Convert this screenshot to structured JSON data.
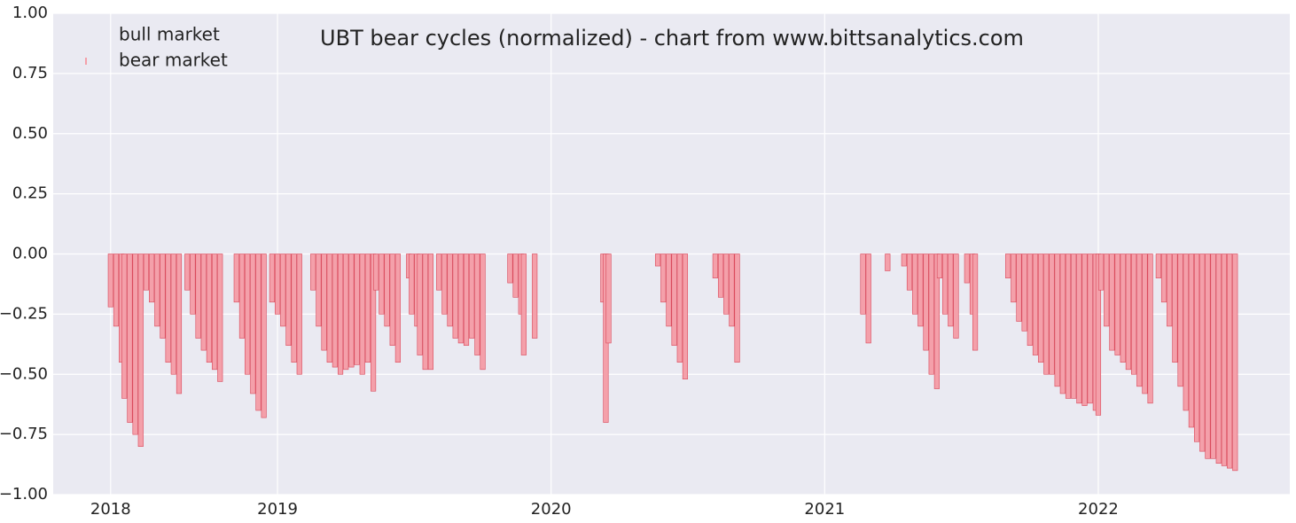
{
  "chart_data": {
    "type": "bar",
    "title": "UBT bear cycles (normalized)  - chart from www.bittsanalytics.com",
    "series": [
      {
        "name": "bull market",
        "x": [],
        "values": []
      },
      {
        "name": "bear market",
        "color": "#f4a0aa",
        "x": [
          2018.39,
          2018.41,
          2018.43,
          2018.44,
          2018.46,
          2018.48,
          2018.5,
          2018.52,
          2018.54,
          2018.56,
          2018.58,
          2018.6,
          2018.62,
          2018.64,
          2018.67,
          2018.69,
          2018.71,
          2018.73,
          2018.75,
          2018.77,
          2018.79,
          2018.85,
          2018.87,
          2018.89,
          2018.91,
          2018.93,
          2018.95,
          2018.98,
          2019.0,
          2019.02,
          2019.04,
          2019.06,
          2019.08,
          2019.13,
          2019.15,
          2019.17,
          2019.19,
          2019.21,
          2019.23,
          2019.25,
          2019.27,
          2019.29,
          2019.31,
          2019.33,
          2019.35,
          2019.36,
          2019.38,
          2019.4,
          2019.42,
          2019.44,
          2019.48,
          2019.49,
          2019.51,
          2019.52,
          2019.54,
          2019.56,
          2019.59,
          2019.61,
          2019.63,
          2019.65,
          2019.67,
          2019.69,
          2019.71,
          2019.73,
          2019.75,
          2019.85,
          2019.87,
          2019.89,
          2019.9,
          2019.94,
          2020.19,
          2020.2,
          2020.21,
          2020.39,
          2020.41,
          2020.43,
          2020.45,
          2020.47,
          2020.49,
          2020.6,
          2020.62,
          2020.64,
          2020.66,
          2020.68,
          2021.14,
          2021.16,
          2021.23,
          2021.29,
          2021.31,
          2021.33,
          2021.35,
          2021.37,
          2021.39,
          2021.41,
          2021.42,
          2021.44,
          2021.46,
          2021.48,
          2021.52,
          2021.54,
          2021.55,
          2021.67,
          2021.69,
          2021.71,
          2021.73,
          2021.75,
          2021.77,
          2021.79,
          2021.81,
          2021.83,
          2021.85,
          2021.87,
          2021.89,
          2021.91,
          2021.93,
          2021.95,
          2021.97,
          2021.99,
          2022.0,
          2022.01,
          2022.03,
          2022.05,
          2022.07,
          2022.09,
          2022.11,
          2022.13,
          2022.15,
          2022.17,
          2022.19,
          2022.22,
          2022.24,
          2022.26,
          2022.28,
          2022.3,
          2022.32,
          2022.34,
          2022.36,
          2022.38,
          2022.4,
          2022.42,
          2022.44,
          2022.46,
          2022.48,
          2022.5
        ],
        "values": [
          -0.22,
          -0.3,
          -0.45,
          -0.6,
          -0.7,
          -0.75,
          -0.8,
          -0.15,
          -0.2,
          -0.3,
          -0.35,
          -0.45,
          -0.5,
          -0.58,
          -0.15,
          -0.25,
          -0.35,
          -0.4,
          -0.45,
          -0.48,
          -0.53,
          -0.2,
          -0.35,
          -0.5,
          -0.58,
          -0.65,
          -0.68,
          -0.2,
          -0.25,
          -0.3,
          -0.38,
          -0.45,
          -0.5,
          -0.15,
          -0.3,
          -0.4,
          -0.45,
          -0.47,
          -0.5,
          -0.48,
          -0.47,
          -0.46,
          -0.5,
          -0.45,
          -0.57,
          -0.15,
          -0.25,
          -0.3,
          -0.38,
          -0.45,
          -0.1,
          -0.25,
          -0.3,
          -0.42,
          -0.48,
          -0.48,
          -0.15,
          -0.25,
          -0.3,
          -0.35,
          -0.37,
          -0.38,
          -0.35,
          -0.42,
          -0.48,
          -0.12,
          -0.18,
          -0.25,
          -0.42,
          -0.35,
          -0.2,
          -0.7,
          -0.37,
          -0.05,
          -0.2,
          -0.3,
          -0.38,
          -0.45,
          -0.52,
          -0.1,
          -0.18,
          -0.25,
          -0.3,
          -0.45,
          -0.25,
          -0.37,
          -0.07,
          -0.05,
          -0.15,
          -0.25,
          -0.3,
          -0.4,
          -0.5,
          -0.56,
          -0.1,
          -0.25,
          -0.3,
          -0.35,
          -0.12,
          -0.25,
          -0.4,
          -0.1,
          -0.2,
          -0.28,
          -0.32,
          -0.38,
          -0.42,
          -0.45,
          -0.5,
          -0.5,
          -0.55,
          -0.58,
          -0.6,
          -0.6,
          -0.62,
          -0.63,
          -0.62,
          -0.65,
          -0.67,
          -0.15,
          -0.3,
          -0.4,
          -0.42,
          -0.45,
          -0.48,
          -0.5,
          -0.55,
          -0.58,
          -0.62,
          -0.1,
          -0.2,
          -0.3,
          -0.45,
          -0.55,
          -0.65,
          -0.72,
          -0.78,
          -0.82,
          -0.85,
          -0.85,
          -0.87,
          -0.88,
          -0.89,
          -0.9
        ]
      }
    ],
    "bar_width": 0.018,
    "xlim": [
      2018.18,
      2022.7
    ],
    "xticks": [
      {
        "value": 2018.39,
        "label": "2018"
      },
      2019,
      2020,
      2021,
      2022
    ],
    "ylim": [
      -1,
      1
    ],
    "yticks": [
      {
        "value": -1,
        "label": "−1.00"
      },
      {
        "value": -0.75,
        "label": "−0.75"
      },
      {
        "value": -0.5,
        "label": "−0.50"
      },
      {
        "value": -0.25,
        "label": "−0.25"
      },
      {
        "value": 0,
        "label": "0.00"
      },
      {
        "value": 0.25,
        "label": "0.25"
      },
      {
        "value": 0.5,
        "label": "0.50"
      },
      {
        "value": 0.75,
        "label": "0.75"
      },
      {
        "value": 1,
        "label": "1.00"
      }
    ],
    "grid": true,
    "legend": "upper left"
  }
}
